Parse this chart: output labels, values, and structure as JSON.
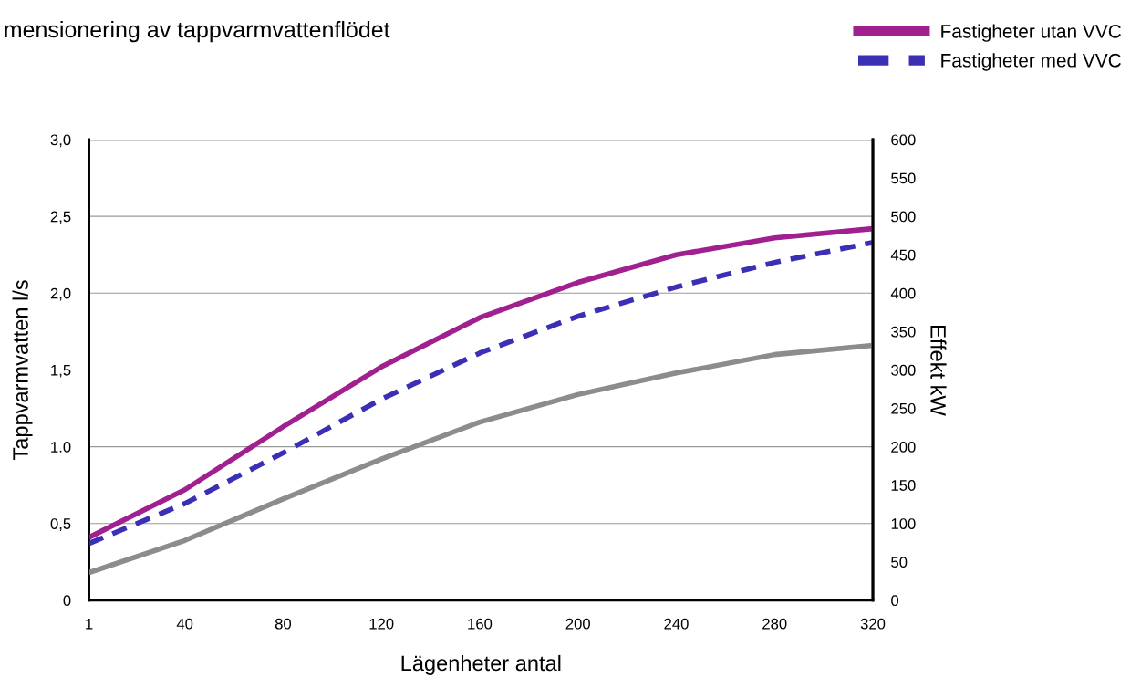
{
  "chart_data": {
    "type": "line",
    "title": "mensionering av tappvarmvattenflödet",
    "xlabel": "Lägenheter antal",
    "ylabel": "Tappvarmvatten l/s",
    "y2label": "Effekt kW",
    "x": [
      1,
      40,
      80,
      120,
      160,
      200,
      240,
      280,
      320
    ],
    "series": [
      {
        "name": "Fastigheter utan VVC",
        "color": "#a0208f",
        "line_style": "solid",
        "values": [
          0.41,
          0.72,
          1.13,
          1.52,
          1.84,
          2.07,
          2.25,
          2.36,
          2.42
        ]
      },
      {
        "name": "Fastigheter med VVC",
        "color": "#3b30b5",
        "line_style": "dashed",
        "values": [
          0.37,
          0.63,
          0.96,
          1.31,
          1.61,
          1.85,
          2.04,
          2.2,
          2.33
        ]
      },
      {
        "color": "#8c8c8c",
        "line_style": "solid",
        "values": [
          0.18,
          0.39,
          0.66,
          0.92,
          1.16,
          1.34,
          1.48,
          1.6,
          1.66
        ]
      }
    ],
    "xlim": [
      1,
      320
    ],
    "xticks": [
      1,
      40,
      80,
      120,
      160,
      200,
      240,
      280,
      320
    ],
    "ylim": [
      0,
      3
    ],
    "yticks": [
      0,
      {
        "value": 0.5,
        "label": "0,5"
      },
      {
        "value": 1.0,
        "label": "1.0"
      },
      {
        "value": 1.5,
        "label": "1,5"
      },
      {
        "value": 2.0,
        "label": "2,0"
      },
      {
        "value": 2.5,
        "label": "2,5"
      },
      {
        "value": 3.0,
        "label": "3,0"
      }
    ],
    "y2lim": [
      0,
      600
    ],
    "y2ticks": [
      0,
      50,
      100,
      150,
      200,
      250,
      300,
      350,
      400,
      450,
      500,
      550,
      600
    ],
    "grid": "y",
    "legend": "top right",
    "marker": "none"
  }
}
